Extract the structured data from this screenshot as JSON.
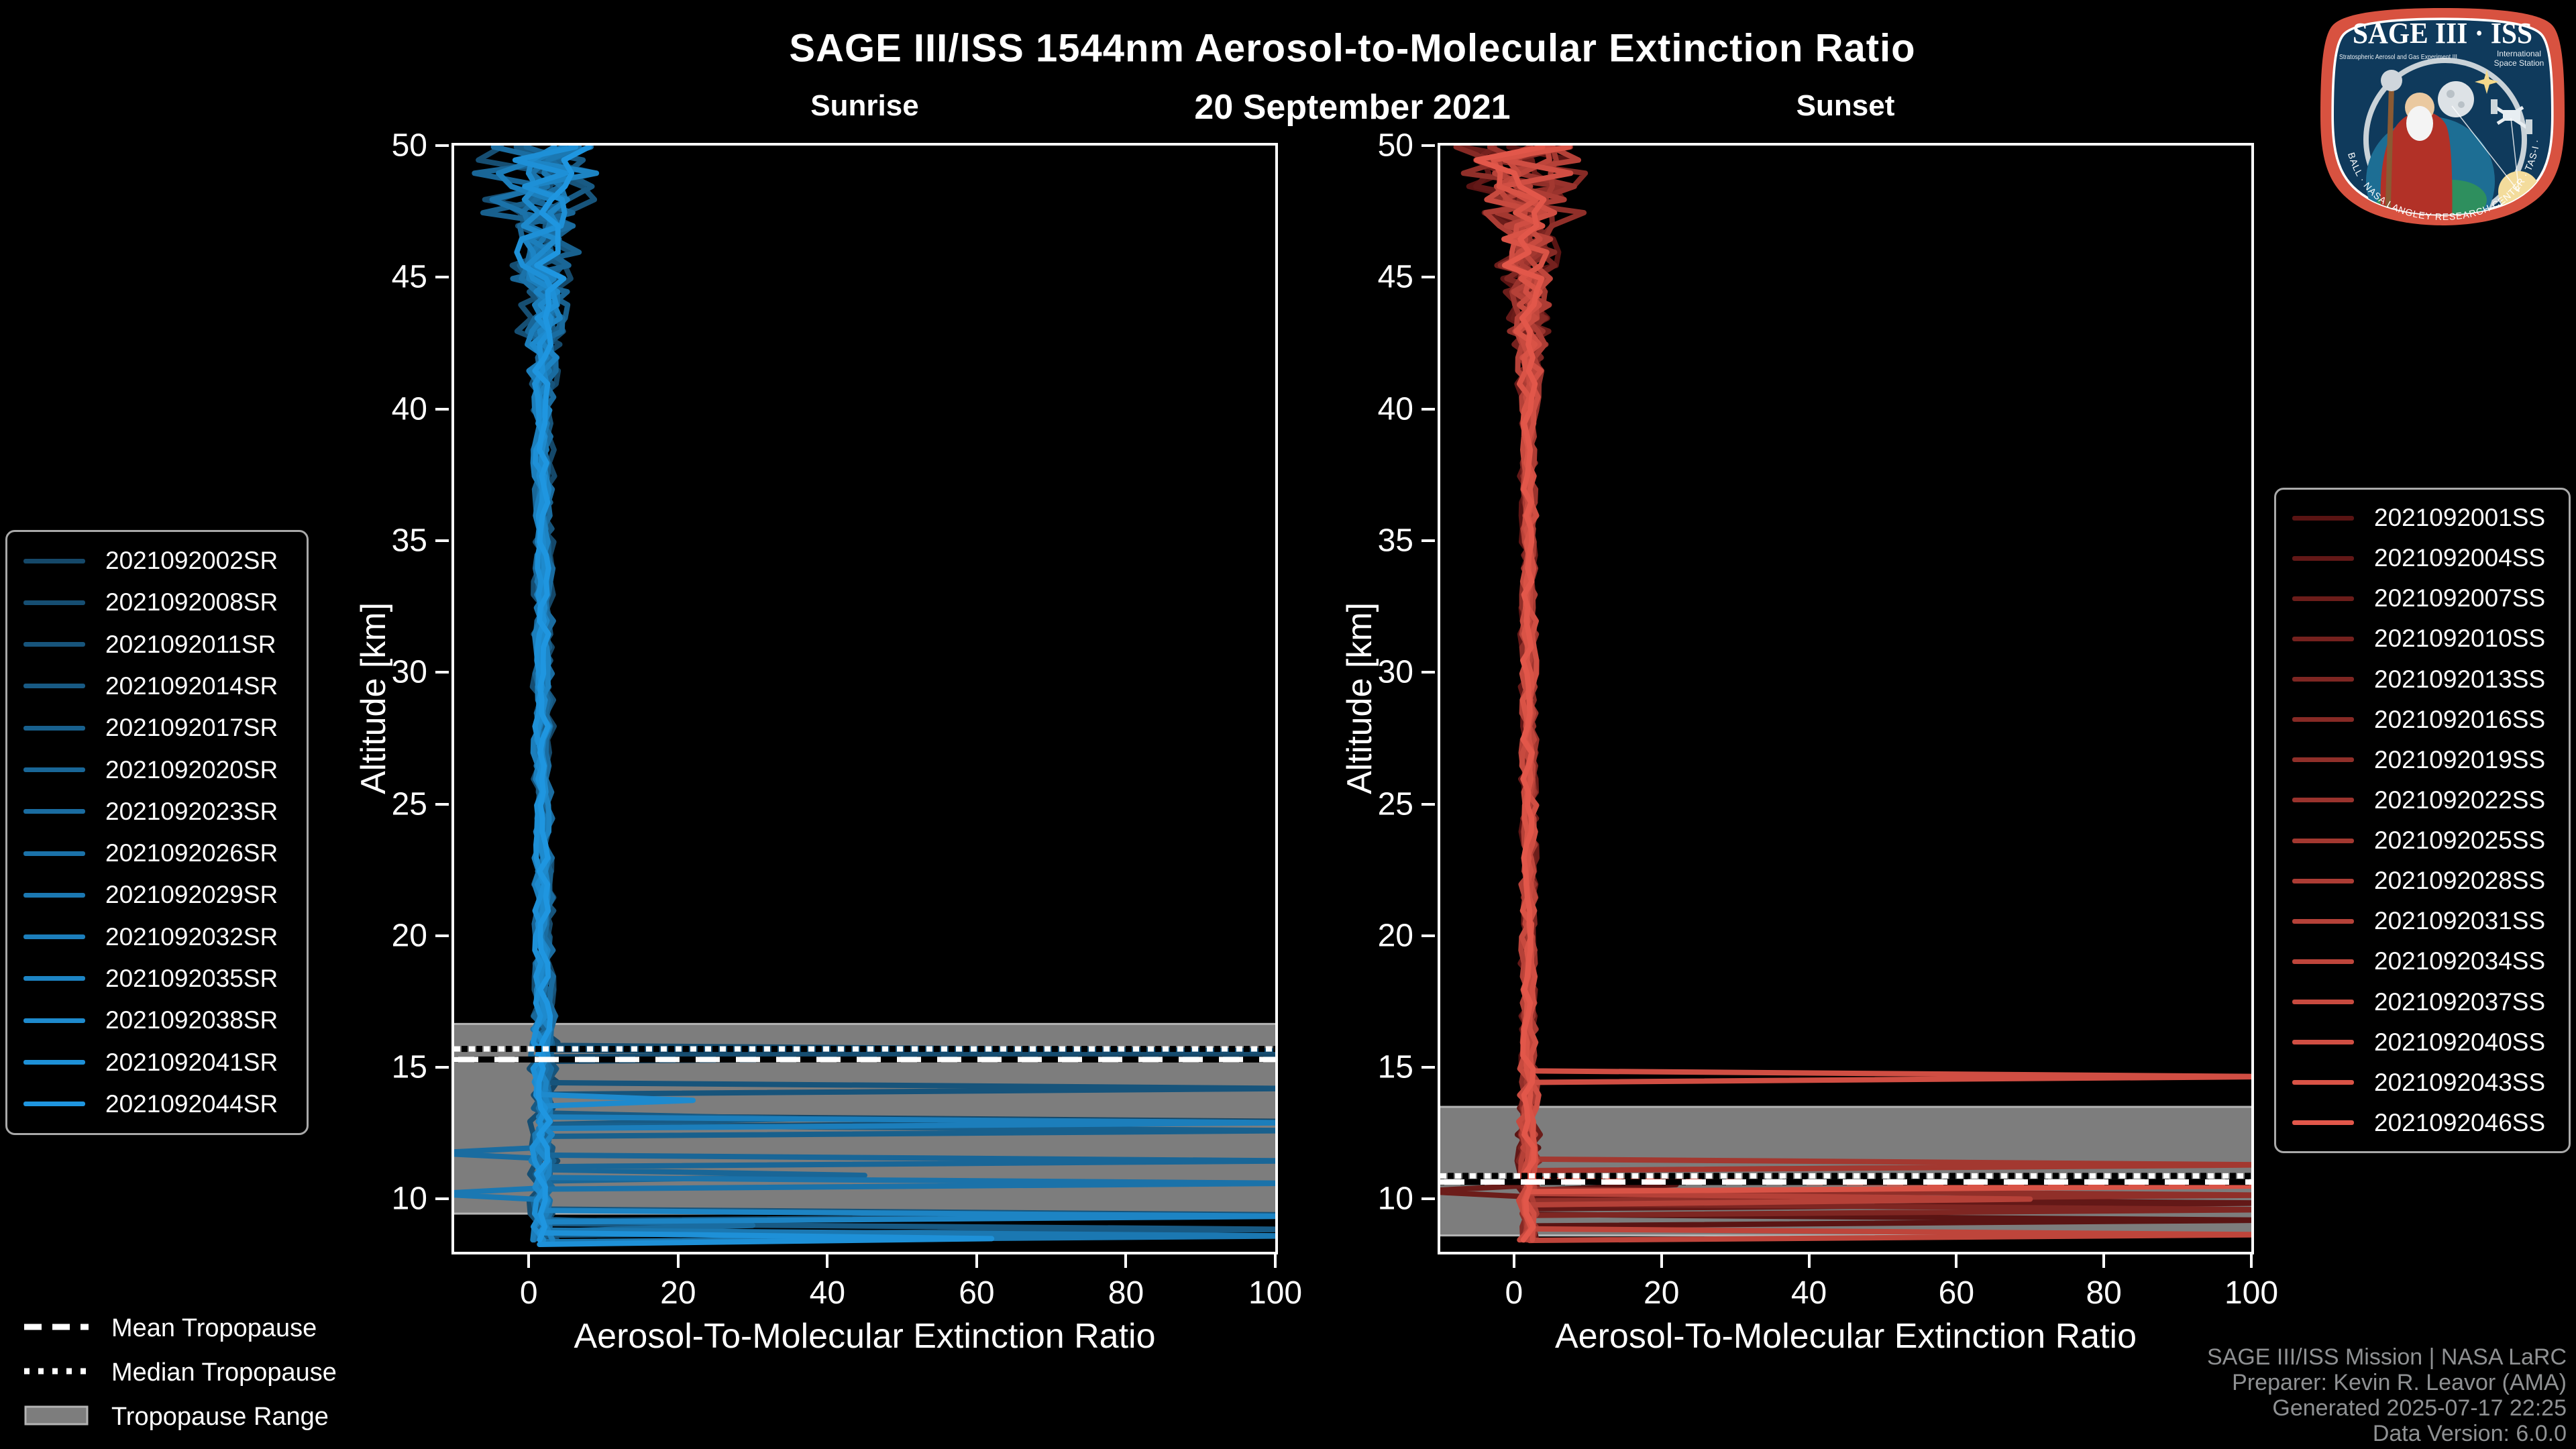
{
  "title": "SAGE III/ISS 1544nm Aerosol-to-Molecular Extinction Ratio",
  "date_label": "20 September 2021",
  "colors": {
    "background": "#000000",
    "axis": "#ffffff",
    "tropopause_band": "#7d7d7d",
    "tropopause_band_edge": "#b4b4b4",
    "tropopause_line": "#ffffff",
    "footer_text": "#8f9193",
    "sunrise_dark": "#154869",
    "sunrise_bright": "#1f96e0",
    "sunset_dark": "#5a1413",
    "sunset_bright": "#e2574a"
  },
  "chart_data": {
    "type": "line",
    "x_label": "Aerosol-To-Molecular Extinction Ratio",
    "y_label": "Altitude [km]",
    "x_range": [
      -10,
      100
    ],
    "y_range": [
      8,
      50
    ],
    "x_ticks": [
      0,
      20,
      40,
      60,
      80,
      100
    ],
    "y_ticks": [
      10,
      15,
      20,
      25,
      30,
      35,
      40,
      45,
      50
    ],
    "grid": false,
    "legend_position": "outside",
    "panels": [
      {
        "id": "sunrise",
        "title": "Sunrise",
        "legend_side": "left",
        "tropopause": {
          "mean_km": 15.3,
          "median_km": 15.7,
          "range_km": [
            9.45,
            16.65
          ]
        },
        "profile_model": {
          "cluster_center_ratio": 2.0,
          "cluster_noise_ratio": 0.85,
          "upper_noise_start_km": 40,
          "upper_noise_max_ratio": 10,
          "lower_noise_below_km": 17
        },
        "series": [
          {
            "name": "2021092002SR",
            "color": "#154869",
            "seed": 3,
            "spikes": [
              {
                "alt_km": 15.45,
                "to_ratio": 103
              },
              {
                "alt_km": 12.95,
                "to_ratio": 103
              }
            ]
          },
          {
            "name": "2021092008SR",
            "color": "#164e72",
            "seed": 5,
            "spikes": [
              {
                "alt_km": 15.62,
                "to_ratio": 103
              }
            ]
          },
          {
            "name": "2021092011SR",
            "color": "#17547b",
            "seed": 7,
            "spikes": [
              {
                "alt_km": 14.2,
                "to_ratio": 103
              },
              {
                "alt_km": 9.4,
                "to_ratio": 103
              }
            ]
          },
          {
            "name": "2021092014SR",
            "color": "#185a84",
            "seed": 11,
            "spikes": [
              {
                "alt_km": 13.05,
                "to_ratio": 36
              },
              {
                "alt_km": 8.85,
                "to_ratio": 103
              }
            ]
          },
          {
            "name": "2021092017SR",
            "color": "#18608d",
            "seed": 13,
            "spikes": [
              {
                "alt_km": 12.6,
                "to_ratio": 103
              }
            ]
          },
          {
            "name": "2021092020SR",
            "color": "#196697",
            "seed": 17,
            "spikes": [
              {
                "alt_km": 11.45,
                "to_ratio": 103
              },
              {
                "alt_km": 10.9,
                "to_ratio": 45
              }
            ]
          },
          {
            "name": "2021092023SR",
            "color": "#1a6ca0",
            "seed": 19,
            "spikes": [
              {
                "alt_km": 11.75,
                "to_ratio": -13
              },
              {
                "alt_km": 9.0,
                "to_ratio": 30
              }
            ]
          },
          {
            "name": "2021092026SR",
            "color": "#1b72a9",
            "seed": 23,
            "spikes": [
              {
                "alt_km": 10.6,
                "to_ratio": 103
              }
            ]
          },
          {
            "name": "2021092029SR",
            "color": "#1b78b2",
            "seed": 29,
            "spikes": [
              {
                "alt_km": 10.2,
                "to_ratio": -13
              },
              {
                "alt_km": 8.6,
                "to_ratio": 103
              }
            ]
          },
          {
            "name": "2021092032SR",
            "color": "#1c7ebb",
            "seed": 31,
            "spikes": [
              {
                "alt_km": 12.9,
                "to_ratio": 103
              }
            ]
          },
          {
            "name": "2021092035SR",
            "color": "#1d84c4",
            "seed": 37,
            "spikes": [
              {
                "alt_km": 9.35,
                "to_ratio": 103
              }
            ]
          },
          {
            "name": "2021092038SR",
            "color": "#1e8acd",
            "seed": 41,
            "spikes": [
              {
                "alt_km": 13.75,
                "to_ratio": 22
              }
            ]
          },
          {
            "name": "2021092041SR",
            "color": "#1e90d7",
            "seed": 43,
            "spikes": [
              {
                "alt_km": 8.5,
                "to_ratio": 62
              }
            ]
          },
          {
            "name": "2021092044SR",
            "color": "#1f96e0",
            "seed": 47,
            "spikes": []
          }
        ]
      },
      {
        "id": "sunset",
        "title": "Sunset",
        "legend_side": "right",
        "tropopause": {
          "mean_km": 10.65,
          "median_km": 10.88,
          "range_km": [
            8.62,
            13.5
          ]
        },
        "profile_model": {
          "cluster_center_ratio": 2.0,
          "cluster_noise_ratio": 0.85,
          "upper_noise_start_km": 40,
          "upper_noise_max_ratio": 14,
          "lower_noise_below_km": 15
        },
        "series": [
          {
            "name": "2021092001SS",
            "color": "#5a1413",
            "seed": 53,
            "spikes": [
              {
                "alt_km": 9.2,
                "to_ratio": 103
              },
              {
                "alt_km": 10.55,
                "to_ratio": 22
              }
            ]
          },
          {
            "name": "2021092004SS",
            "color": "#631817",
            "seed": 59,
            "spikes": [
              {
                "alt_km": 9.85,
                "to_ratio": 103
              }
            ]
          },
          {
            "name": "2021092007SS",
            "color": "#6c1d1a",
            "seed": 61,
            "spikes": [
              {
                "alt_km": 10.3,
                "to_ratio": -13
              }
            ]
          },
          {
            "name": "2021092010SS",
            "color": "#75211e",
            "seed": 67,
            "spikes": [
              {
                "alt_km": 8.45,
                "to_ratio": 103
              }
            ]
          },
          {
            "name": "2021092013SS",
            "color": "#7e2622",
            "seed": 71,
            "spikes": [
              {
                "alt_km": 9.6,
                "to_ratio": 103
              }
            ]
          },
          {
            "name": "2021092016SS",
            "color": "#872a25",
            "seed": 73,
            "spikes": []
          },
          {
            "name": "2021092019SS",
            "color": "#902f29",
            "seed": 79,
            "spikes": [
              {
                "alt_km": 10.15,
                "to_ratio": 103
              }
            ]
          },
          {
            "name": "2021092022SS",
            "color": "#9a332d",
            "seed": 83,
            "spikes": []
          },
          {
            "name": "2021092025SS",
            "color": "#a33830",
            "seed": 89,
            "spikes": [
              {
                "alt_km": 11.3,
                "to_ratio": 103
              }
            ]
          },
          {
            "name": "2021092028SS",
            "color": "#ac3c34",
            "seed": 97,
            "spikes": []
          },
          {
            "name": "2021092031SS",
            "color": "#b54138",
            "seed": 101,
            "spikes": [
              {
                "alt_km": 10.0,
                "to_ratio": 70
              }
            ]
          },
          {
            "name": "2021092034SS",
            "color": "#be453b",
            "seed": 103,
            "spikes": [
              {
                "alt_km": 8.65,
                "to_ratio": 103
              }
            ]
          },
          {
            "name": "2021092037SS",
            "color": "#c74a3f",
            "seed": 107,
            "spikes": []
          },
          {
            "name": "2021092040SS",
            "color": "#d04e43",
            "seed": 109,
            "spikes": [
              {
                "alt_km": 14.65,
                "to_ratio": 103
              }
            ]
          },
          {
            "name": "2021092043SS",
            "color": "#d95346",
            "seed": 113,
            "spikes": [
              {
                "alt_km": 10.5,
                "to_ratio": 103
              },
              {
                "alt_km": 8.3,
                "to_ratio": 95
              }
            ]
          },
          {
            "name": "2021092046SS",
            "color": "#e2574a",
            "seed": 127,
            "spikes": []
          }
        ]
      }
    ]
  },
  "tropopause_legend": [
    {
      "label": "Mean Tropopause",
      "style": "dashed"
    },
    {
      "label": "Median Tropopause",
      "style": "dotted"
    },
    {
      "label": "Tropopause Range",
      "style": "band"
    }
  ],
  "footer": {
    "lines": [
      "SAGE III/ISS Mission | NASA LaRC",
      "Preparer: Kevin R. Leavor (AMA)",
      "Generated 2025-07-17 22:25",
      "Data Version: 6.0.0"
    ]
  },
  "logo": {
    "title": "SAGE III · ISS",
    "sub_left": "Stratospheric Aerosol and Gas Experiment III",
    "sub_right_1": "International",
    "sub_right_2": "Space Station",
    "ring_text": "BALL · NASA LANGLEY RESEARCH CENTER · TAS-I · ESA"
  }
}
